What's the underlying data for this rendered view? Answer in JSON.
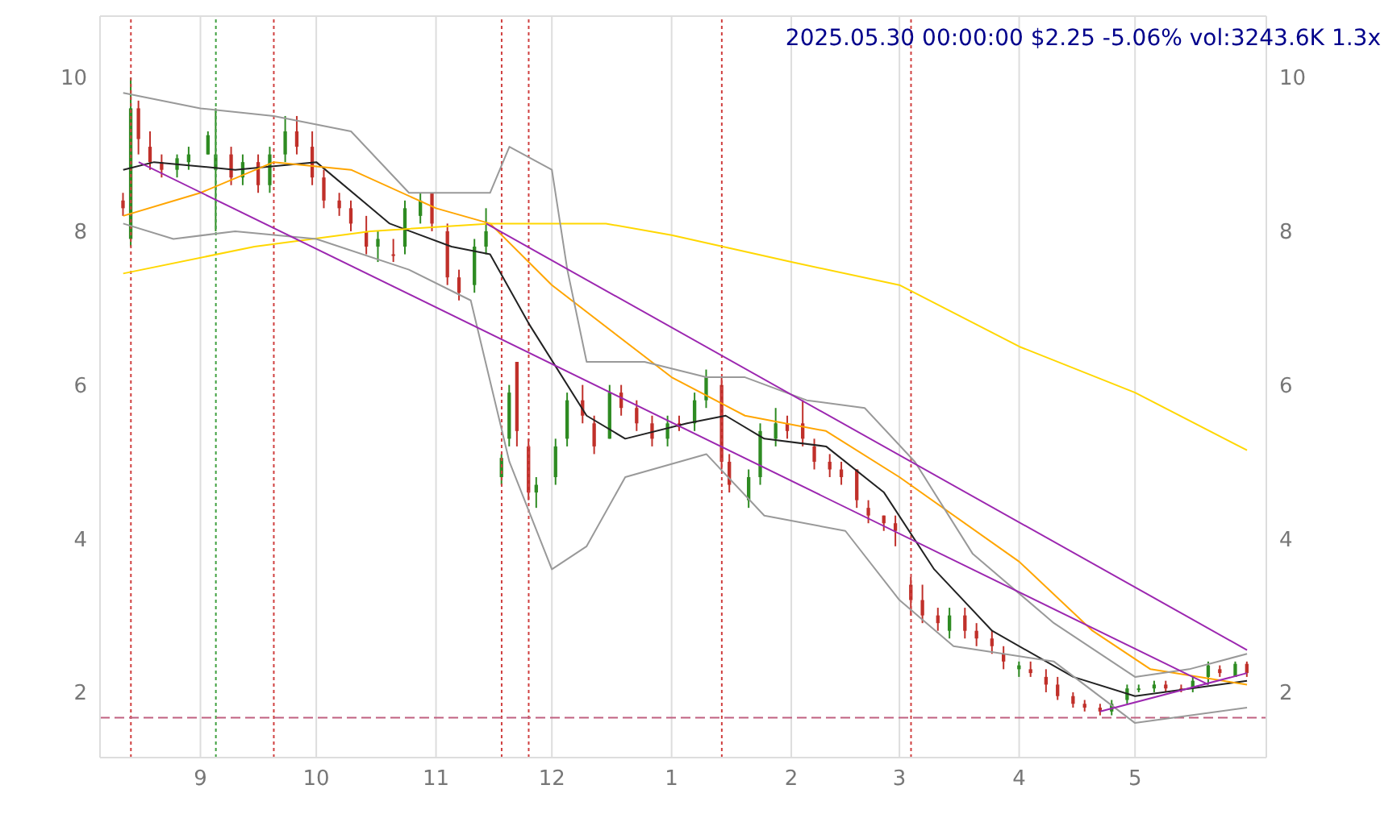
{
  "chart_data": {
    "type": "candlestick",
    "title": "2025.05.30 00:00:00 $2.25 -5.06% vol:3243.6K 1.3x",
    "x": [
      "2024-08-12",
      "2024-08-14",
      "2024-08-16",
      "2024-08-19",
      "2024-08-22",
      "2024-08-26",
      "2024-08-29",
      "2024-09-03",
      "2024-09-05",
      "2024-09-09",
      "2024-09-12",
      "2024-09-16",
      "2024-09-19",
      "2024-09-23",
      "2024-09-26",
      "2024-09-30",
      "2024-10-03",
      "2024-10-07",
      "2024-10-10",
      "2024-10-14",
      "2024-10-17",
      "2024-10-21",
      "2024-10-24",
      "2024-10-28",
      "2024-10-31",
      "2024-11-04",
      "2024-11-07",
      "2024-11-11",
      "2024-11-14",
      "2024-11-18",
      "2024-11-20",
      "2024-11-22",
      "2024-11-25",
      "2024-11-27",
      "2024-12-02",
      "2024-12-05",
      "2024-12-09",
      "2024-12-12",
      "2024-12-16",
      "2024-12-19",
      "2024-12-23",
      "2024-12-27",
      "2024-12-31",
      "2025-01-03",
      "2025-01-07",
      "2025-01-10",
      "2025-01-14",
      "2025-01-16",
      "2025-01-21",
      "2025-01-24",
      "2025-01-28",
      "2025-01-31",
      "2025-02-04",
      "2025-02-07",
      "2025-02-11",
      "2025-02-14",
      "2025-02-18",
      "2025-02-21",
      "2025-02-25",
      "2025-02-28",
      "2025-03-04",
      "2025-03-07",
      "2025-03-11",
      "2025-03-14",
      "2025-03-18",
      "2025-03-21",
      "2025-03-25",
      "2025-03-28",
      "2025-04-01",
      "2025-04-04",
      "2025-04-08",
      "2025-04-11",
      "2025-04-15",
      "2025-04-18",
      "2025-04-22",
      "2025-04-25",
      "2025-04-29",
      "2025-05-02",
      "2025-05-06",
      "2025-05-09",
      "2025-05-13",
      "2025-05-16",
      "2025-05-20",
      "2025-05-23",
      "2025-05-27",
      "2025-05-30"
    ],
    "ohlc": [
      [
        8.4,
        8.5,
        8.2,
        8.3
      ],
      [
        7.9,
        10.0,
        7.8,
        9.6
      ],
      [
        9.6,
        9.7,
        9.0,
        9.2
      ],
      [
        9.1,
        9.3,
        8.8,
        8.9
      ],
      [
        8.9,
        9.0,
        8.7,
        8.8
      ],
      [
        8.8,
        9.0,
        8.7,
        8.95
      ],
      [
        8.9,
        9.1,
        8.8,
        9.0
      ],
      [
        9.0,
        9.3,
        9.0,
        9.25
      ],
      [
        8.8,
        9.6,
        8.0,
        9.0
      ],
      [
        9.0,
        9.1,
        8.6,
        8.7
      ],
      [
        8.7,
        9.0,
        8.6,
        8.9
      ],
      [
        8.9,
        9.0,
        8.5,
        8.6
      ],
      [
        8.6,
        9.1,
        8.5,
        9.0
      ],
      [
        9.0,
        9.5,
        8.9,
        9.3
      ],
      [
        9.3,
        9.5,
        9.0,
        9.1
      ],
      [
        9.1,
        9.3,
        8.6,
        8.7
      ],
      [
        8.7,
        8.8,
        8.3,
        8.4
      ],
      [
        8.4,
        8.5,
        8.2,
        8.3
      ],
      [
        8.3,
        8.4,
        8.0,
        8.1
      ],
      [
        8.0,
        8.2,
        7.7,
        7.8
      ],
      [
        7.8,
        8.0,
        7.6,
        7.9
      ],
      [
        7.7,
        7.9,
        7.6,
        7.7
      ],
      [
        7.8,
        8.4,
        7.7,
        8.3
      ],
      [
        8.2,
        8.5,
        8.1,
        8.4
      ],
      [
        8.5,
        8.5,
        8.0,
        8.1
      ],
      [
        8.0,
        8.1,
        7.3,
        7.4
      ],
      [
        7.4,
        7.5,
        7.1,
        7.2
      ],
      [
        7.3,
        7.9,
        7.2,
        7.8
      ],
      [
        7.8,
        8.3,
        7.7,
        8.0
      ],
      [
        4.8,
        5.1,
        4.7,
        5.05
      ],
      [
        5.3,
        6.0,
        5.2,
        5.9
      ],
      [
        6.3,
        6.3,
        5.2,
        5.4
      ],
      [
        5.2,
        5.3,
        4.5,
        4.6
      ],
      [
        4.6,
        4.8,
        4.4,
        4.7
      ],
      [
        4.8,
        5.3,
        4.7,
        5.2
      ],
      [
        5.3,
        5.9,
        5.2,
        5.8
      ],
      [
        5.8,
        6.0,
        5.5,
        5.6
      ],
      [
        5.5,
        5.6,
        5.1,
        5.2
      ],
      [
        5.3,
        6.0,
        5.3,
        5.9
      ],
      [
        5.9,
        6.0,
        5.6,
        5.7
      ],
      [
        5.7,
        5.8,
        5.4,
        5.5
      ],
      [
        5.5,
        5.6,
        5.2,
        5.3
      ],
      [
        5.3,
        5.6,
        5.2,
        5.5
      ],
      [
        5.5,
        5.6,
        5.4,
        5.45
      ],
      [
        5.5,
        5.9,
        5.4,
        5.8
      ],
      [
        5.8,
        6.2,
        5.7,
        6.1
      ],
      [
        6.0,
        6.1,
        4.9,
        5.0
      ],
      [
        5.0,
        5.1,
        4.6,
        4.7
      ],
      [
        4.5,
        4.9,
        4.4,
        4.8
      ],
      [
        4.8,
        5.5,
        4.7,
        5.4
      ],
      [
        5.3,
        5.7,
        5.2,
        5.5
      ],
      [
        5.5,
        5.6,
        5.3,
        5.4
      ],
      [
        5.5,
        5.8,
        5.2,
        5.3
      ],
      [
        5.2,
        5.3,
        4.9,
        5.0
      ],
      [
        5.0,
        5.1,
        4.8,
        4.9
      ],
      [
        4.9,
        5.0,
        4.7,
        4.8
      ],
      [
        4.9,
        4.9,
        4.4,
        4.5
      ],
      [
        4.4,
        4.5,
        4.2,
        4.3
      ],
      [
        4.3,
        4.3,
        4.1,
        4.2
      ],
      [
        4.2,
        4.3,
        3.9,
        4.1
      ],
      [
        3.4,
        3.5,
        3.0,
        3.2
      ],
      [
        3.2,
        3.4,
        2.9,
        3.0
      ],
      [
        3.0,
        3.1,
        2.8,
        2.9
      ],
      [
        2.8,
        3.1,
        2.7,
        3.0
      ],
      [
        3.0,
        3.1,
        2.7,
        2.8
      ],
      [
        2.8,
        2.9,
        2.6,
        2.7
      ],
      [
        2.7,
        2.8,
        2.5,
        2.6
      ],
      [
        2.5,
        2.6,
        2.3,
        2.4
      ],
      [
        2.3,
        2.4,
        2.2,
        2.35
      ],
      [
        2.3,
        2.4,
        2.2,
        2.25
      ],
      [
        2.2,
        2.3,
        2.0,
        2.1
      ],
      [
        2.1,
        2.2,
        1.9,
        1.95
      ],
      [
        1.95,
        2.0,
        1.8,
        1.85
      ],
      [
        1.85,
        1.9,
        1.75,
        1.8
      ],
      [
        1.8,
        1.85,
        1.7,
        1.75
      ],
      [
        1.75,
        1.9,
        1.7,
        1.85
      ],
      [
        1.9,
        2.1,
        1.85,
        2.05
      ],
      [
        2.05,
        2.1,
        2.0,
        2.05
      ],
      [
        2.05,
        2.15,
        2.0,
        2.1
      ],
      [
        2.1,
        2.15,
        2.0,
        2.05
      ],
      [
        2.05,
        2.1,
        2.0,
        2.05
      ],
      [
        2.05,
        2.2,
        2.0,
        2.15
      ],
      [
        2.2,
        2.4,
        2.1,
        2.35
      ],
      [
        2.3,
        2.35,
        2.2,
        2.25
      ],
      [
        2.2,
        2.4,
        2.2,
        2.37
      ],
      [
        2.37,
        2.4,
        2.2,
        2.25
      ]
    ],
    "colors": [
      "#c0302a",
      "#2e8b22",
      "#c0302a",
      "#c0302a",
      "#c0302a",
      "#2e8b22",
      "#2e8b22",
      "#2e8b22",
      "#2e8b22",
      "#c0302a",
      "#2e8b22",
      "#c0302a",
      "#2e8b22",
      "#2e8b22",
      "#c0302a",
      "#c0302a",
      "#c0302a",
      "#c0302a",
      "#c0302a",
      "#c0302a",
      "#2e8b22",
      "#c0302a",
      "#2e8b22",
      "#2e8b22",
      "#c0302a",
      "#c0302a",
      "#c0302a",
      "#2e8b22",
      "#2e8b22",
      "#2e8b22",
      "#2e8b22",
      "#c0302a",
      "#c0302a",
      "#2e8b22",
      "#2e8b22",
      "#2e8b22",
      "#c0302a",
      "#c0302a",
      "#2e8b22",
      "#c0302a",
      "#c0302a",
      "#c0302a",
      "#2e8b22",
      "#c0302a",
      "#2e8b22",
      "#2e8b22",
      "#c0302a",
      "#c0302a",
      "#2e8b22",
      "#2e8b22",
      "#2e8b22",
      "#c0302a",
      "#c0302a",
      "#c0302a",
      "#c0302a",
      "#c0302a",
      "#c0302a",
      "#c0302a",
      "#c0302a",
      "#c0302a",
      "#c0302a",
      "#c0302a",
      "#c0302a",
      "#2e8b22",
      "#c0302a",
      "#c0302a",
      "#c0302a",
      "#c0302a",
      "#2e8b22",
      "#c0302a",
      "#c0302a",
      "#c0302a",
      "#c0302a",
      "#c0302a",
      "#c0302a",
      "#2e8b22",
      "#2e8b22",
      "#2e8b22",
      "#2e8b22",
      "#c0302a",
      "#c0302a",
      "#2e8b22",
      "#2e8b22",
      "#c0302a",
      "#2e8b22",
      "#c0302a"
    ],
    "series": [
      {
        "type": "line",
        "color": "#222222",
        "x": [
          "2024-08-12",
          "2024-08-20",
          "2024-09-10",
          "2024-10-01",
          "2024-10-20",
          "2024-11-05",
          "2024-11-15",
          "2024-11-25",
          "2024-12-10",
          "2024-12-20",
          "2025-01-05",
          "2025-01-15",
          "2025-01-25",
          "2025-02-10",
          "2025-02-25",
          "2025-03-10",
          "2025-03-25",
          "2025-04-15",
          "2025-05-01",
          "2025-05-30"
        ],
        "values": [
          8.8,
          8.9,
          8.8,
          8.9,
          8.1,
          7.8,
          7.7,
          6.8,
          5.6,
          5.3,
          5.5,
          5.6,
          5.3,
          5.2,
          4.6,
          3.6,
          2.8,
          2.2,
          1.95,
          2.15
        ]
      },
      {
        "type": "line",
        "color": "#ffa500",
        "x": [
          "2024-08-12",
          "2024-09-01",
          "2024-09-20",
          "2024-10-10",
          "2024-11-01",
          "2024-11-15",
          "2024-12-01",
          "2025-01-01",
          "2025-01-20",
          "2025-02-10",
          "2025-03-01",
          "2025-04-01",
          "2025-04-20",
          "2025-05-05",
          "2025-05-30"
        ],
        "values": [
          8.2,
          8.5,
          8.9,
          8.8,
          8.3,
          8.1,
          7.3,
          6.1,
          5.6,
          5.4,
          4.8,
          3.7,
          2.8,
          2.3,
          2.1
        ]
      },
      {
        "type": "line",
        "color": "#ffd700",
        "x": [
          "2024-08-12",
          "2024-09-15",
          "2024-10-15",
          "2024-11-15",
          "2024-12-15",
          "2025-01-01",
          "2025-02-01",
          "2025-03-01",
          "2025-04-01",
          "2025-05-01",
          "2025-05-30"
        ],
        "values": [
          7.45,
          7.8,
          8.0,
          8.1,
          8.1,
          7.95,
          7.6,
          7.3,
          6.5,
          5.9,
          5.15
        ]
      },
      {
        "type": "line",
        "color": "#999999",
        "x": [
          "2024-08-12",
          "2024-09-01",
          "2024-09-20",
          "2024-10-10",
          "2024-10-25",
          "2024-11-15",
          "2024-11-20",
          "2024-12-01",
          "2024-12-05",
          "2024-12-10",
          "2024-12-25",
          "2025-01-10",
          "2025-01-20",
          "2025-02-05",
          "2025-02-20",
          "2025-03-05",
          "2025-03-20",
          "2025-04-10",
          "2025-05-01",
          "2025-05-15",
          "2025-05-30"
        ],
        "values": [
          9.8,
          9.6,
          9.5,
          9.3,
          8.5,
          8.5,
          9.1,
          8.8,
          7.5,
          6.3,
          6.3,
          6.1,
          6.1,
          5.8,
          5.7,
          5.0,
          3.8,
          2.9,
          2.2,
          2.3,
          2.5
        ]
      },
      {
        "type": "line",
        "color": "#999999",
        "x": [
          "2024-08-12",
          "2024-08-25",
          "2024-09-10",
          "2024-10-01",
          "2024-10-25",
          "2024-11-10",
          "2024-11-20",
          "2024-12-01",
          "2024-12-10",
          "2024-12-20",
          "2025-01-10",
          "2025-01-25",
          "2025-02-15",
          "2025-03-01",
          "2025-03-15",
          "2025-04-10",
          "2025-05-01",
          "2025-05-30"
        ],
        "values": [
          8.1,
          7.9,
          8.0,
          7.9,
          7.5,
          7.1,
          5.0,
          3.6,
          3.9,
          4.8,
          5.1,
          4.3,
          4.1,
          3.2,
          2.6,
          2.4,
          1.6,
          1.8
        ]
      },
      {
        "type": "line",
        "color": "#9c27b0",
        "x": [
          "2024-08-16",
          "2025-05-20"
        ],
        "values": [
          8.9,
          2.1
        ]
      },
      {
        "type": "line",
        "color": "#9c27b0",
        "x": [
          "2024-11-14",
          "2025-05-30"
        ],
        "values": [
          8.1,
          2.55
        ]
      },
      {
        "type": "line",
        "color": "#9c27b0",
        "x": [
          "2025-04-22",
          "2025-05-30"
        ],
        "values": [
          1.75,
          2.25
        ]
      }
    ],
    "ref_lines": [
      {
        "axis": "x",
        "value": "2024-08-14",
        "color": "#d04040",
        "line_style": "dotted"
      },
      {
        "axis": "x",
        "value": "2024-09-05",
        "color": "#40a040",
        "line_style": "dotted"
      },
      {
        "axis": "x",
        "value": "2024-09-20",
        "color": "#d04040",
        "line_style": "dotted"
      },
      {
        "axis": "x",
        "value": "2024-11-18",
        "color": "#d04040",
        "line_style": "dotted"
      },
      {
        "axis": "x",
        "value": "2024-11-25",
        "color": "#d04040",
        "line_style": "dotted"
      },
      {
        "axis": "x",
        "value": "2025-01-14",
        "color": "#d04040",
        "line_style": "dotted"
      },
      {
        "axis": "x",
        "value": "2025-03-04",
        "color": "#d04040",
        "line_style": "dotted"
      },
      {
        "axis": "y",
        "value": 1.67,
        "color": "#c06080",
        "line_style": "dashed"
      }
    ],
    "xlim": [
      "2024-08-06",
      "2025-06-04"
    ],
    "xticks": [
      {
        "value": "2024-09-01",
        "label": "9"
      },
      {
        "value": "2024-10-01",
        "label": "10"
      },
      {
        "value": "2024-11-01",
        "label": "11"
      },
      {
        "value": "2024-12-01",
        "label": "12"
      },
      {
        "value": "2025-01-01",
        "label": "1"
      },
      {
        "value": "2025-02-01",
        "label": "2"
      },
      {
        "value": "2025-03-01",
        "label": "3"
      },
      {
        "value": "2025-04-01",
        "label": "4"
      },
      {
        "value": "2025-05-01",
        "label": "5"
      }
    ],
    "ylim": [
      1.15,
      10.8
    ],
    "yticks": [
      2,
      4,
      6,
      8,
      10
    ],
    "y2lim": [
      1.15,
      10.8
    ],
    "y2ticks": [
      2,
      4,
      6,
      8,
      10
    ],
    "grid": true
  }
}
